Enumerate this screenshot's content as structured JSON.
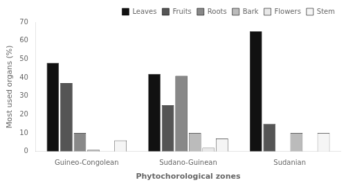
{
  "chart_data": {
    "type": "bar",
    "categories": [
      "Guineo-Congolean",
      "Sudano-Guinean",
      "Sudanian"
    ],
    "series": [
      {
        "name": "Leaves",
        "values": [
          48,
          42,
          65
        ],
        "color": "#111111"
      },
      {
        "name": "Fruits",
        "values": [
          37,
          25,
          15
        ],
        "color": "#555555"
      },
      {
        "name": "Roots",
        "values": [
          10,
          41,
          0
        ],
        "color": "#888888"
      },
      {
        "name": "Bark",
        "values": [
          1,
          10,
          10
        ],
        "color": "#bbbbbb"
      },
      {
        "name": "Flowers",
        "values": [
          0,
          2,
          0
        ],
        "color": "#e8e8e8"
      },
      {
        "name": "Stem",
        "values": [
          6,
          7,
          10
        ],
        "color": "#f5f5f5"
      }
    ],
    "xlabel": "Phytochorological zones",
    "ylabel": "Most used organs (%)",
    "ylim": [
      0,
      70
    ],
    "yticks": [
      0,
      10,
      20,
      30,
      40,
      50,
      60,
      70
    ],
    "grid": false,
    "legend": "upper right"
  }
}
